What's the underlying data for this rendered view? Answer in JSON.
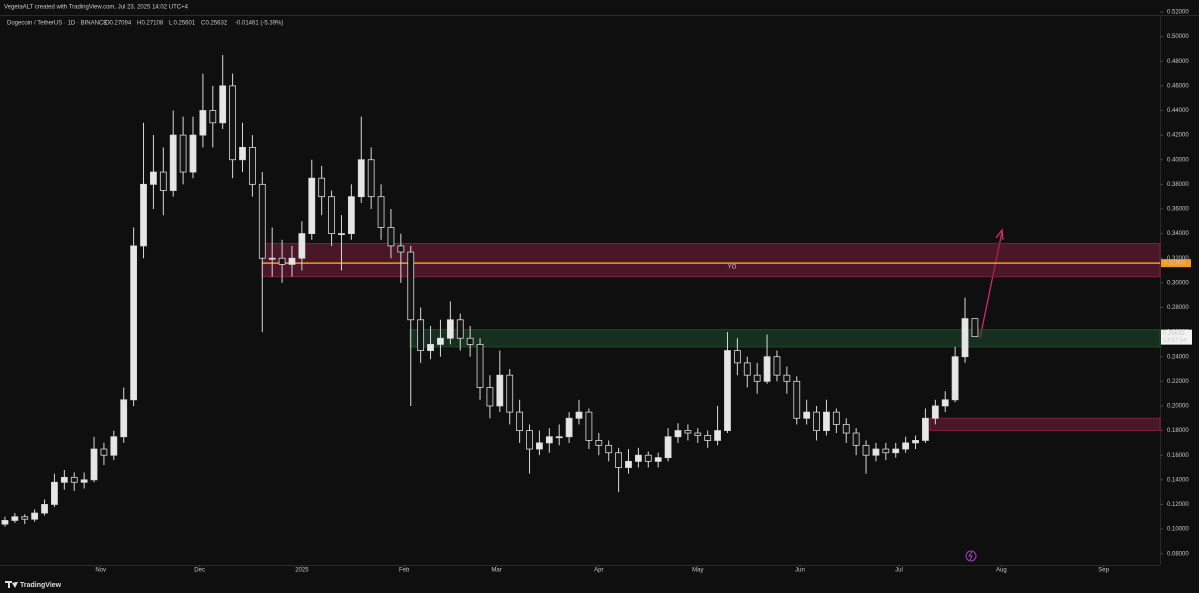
{
  "chart_data": {
    "type": "candlestick",
    "credit": "VegetaALT created with TradingView.com, Jul 23, 2025 14:02 UTC+4",
    "symbol": "Dogecoin / TetherUS · 1D · BINANCE",
    "ohlc_labels": [
      "O",
      "H",
      "L",
      "C"
    ],
    "change": "-0.01461 (-5.39%)",
    "countdown": "13:57:54",
    "brand": "TradingView",
    "up_color": "#e6e6e6",
    "down_color": "#141414",
    "wick_color": "#d8d8d8",
    "candles": [
      [
        0.104,
        0.11,
        0.102,
        0.107
      ],
      [
        0.107,
        0.113,
        0.105,
        0.11
      ],
      [
        0.11,
        0.112,
        0.104,
        0.108
      ],
      [
        0.108,
        0.116,
        0.106,
        0.113
      ],
      [
        0.113,
        0.124,
        0.111,
        0.12
      ],
      [
        0.12,
        0.145,
        0.118,
        0.138
      ],
      [
        0.138,
        0.148,
        0.132,
        0.142
      ],
      [
        0.142,
        0.146,
        0.131,
        0.138
      ],
      [
        0.138,
        0.146,
        0.133,
        0.14
      ],
      [
        0.14,
        0.175,
        0.138,
        0.165
      ],
      [
        0.165,
        0.17,
        0.152,
        0.16
      ],
      [
        0.16,
        0.18,
        0.156,
        0.175
      ],
      [
        0.175,
        0.215,
        0.17,
        0.205
      ],
      [
        0.205,
        0.345,
        0.2,
        0.33
      ],
      [
        0.33,
        0.43,
        0.32,
        0.38
      ],
      [
        0.38,
        0.42,
        0.36,
        0.39
      ],
      [
        0.39,
        0.41,
        0.355,
        0.375
      ],
      [
        0.375,
        0.44,
        0.37,
        0.42
      ],
      [
        0.42,
        0.435,
        0.38,
        0.39
      ],
      [
        0.39,
        0.435,
        0.385,
        0.42
      ],
      [
        0.42,
        0.47,
        0.41,
        0.44
      ],
      [
        0.44,
        0.46,
        0.41,
        0.43
      ],
      [
        0.43,
        0.485,
        0.425,
        0.46
      ],
      [
        0.46,
        0.47,
        0.385,
        0.4
      ],
      [
        0.4,
        0.43,
        0.39,
        0.41
      ],
      [
        0.41,
        0.42,
        0.37,
        0.38
      ],
      [
        0.38,
        0.39,
        0.26,
        0.32
      ],
      [
        0.32,
        0.345,
        0.305,
        0.32
      ],
      [
        0.32,
        0.335,
        0.3,
        0.315
      ],
      [
        0.315,
        0.33,
        0.305,
        0.32
      ],
      [
        0.32,
        0.35,
        0.31,
        0.34
      ],
      [
        0.34,
        0.4,
        0.335,
        0.385
      ],
      [
        0.385,
        0.395,
        0.355,
        0.37
      ],
      [
        0.37,
        0.375,
        0.33,
        0.34
      ],
      [
        0.34,
        0.355,
        0.31,
        0.34
      ],
      [
        0.34,
        0.38,
        0.335,
        0.37
      ],
      [
        0.37,
        0.435,
        0.365,
        0.4
      ],
      [
        0.4,
        0.41,
        0.36,
        0.37
      ],
      [
        0.37,
        0.38,
        0.335,
        0.345
      ],
      [
        0.345,
        0.36,
        0.32,
        0.33
      ],
      [
        0.33,
        0.34,
        0.3,
        0.325
      ],
      [
        0.325,
        0.33,
        0.2,
        0.27
      ],
      [
        0.27,
        0.28,
        0.235,
        0.245
      ],
      [
        0.245,
        0.265,
        0.238,
        0.25
      ],
      [
        0.25,
        0.27,
        0.24,
        0.255
      ],
      [
        0.255,
        0.285,
        0.25,
        0.27
      ],
      [
        0.27,
        0.275,
        0.245,
        0.255
      ],
      [
        0.255,
        0.265,
        0.24,
        0.25
      ],
      [
        0.25,
        0.255,
        0.205,
        0.215
      ],
      [
        0.215,
        0.225,
        0.19,
        0.2
      ],
      [
        0.2,
        0.245,
        0.195,
        0.225
      ],
      [
        0.225,
        0.23,
        0.185,
        0.195
      ],
      [
        0.195,
        0.205,
        0.17,
        0.18
      ],
      [
        0.18,
        0.185,
        0.145,
        0.165
      ],
      [
        0.165,
        0.18,
        0.16,
        0.17
      ],
      [
        0.17,
        0.182,
        0.162,
        0.175
      ],
      [
        0.175,
        0.185,
        0.168,
        0.175
      ],
      [
        0.175,
        0.195,
        0.17,
        0.19
      ],
      [
        0.19,
        0.205,
        0.185,
        0.195
      ],
      [
        0.195,
        0.198,
        0.165,
        0.172
      ],
      [
        0.172,
        0.178,
        0.16,
        0.168
      ],
      [
        0.168,
        0.172,
        0.155,
        0.162
      ],
      [
        0.162,
        0.166,
        0.13,
        0.15
      ],
      [
        0.15,
        0.165,
        0.145,
        0.155
      ],
      [
        0.155,
        0.166,
        0.15,
        0.16
      ],
      [
        0.16,
        0.163,
        0.15,
        0.155
      ],
      [
        0.155,
        0.162,
        0.15,
        0.158
      ],
      [
        0.158,
        0.182,
        0.155,
        0.175
      ],
      [
        0.175,
        0.186,
        0.17,
        0.18
      ],
      [
        0.18,
        0.185,
        0.172,
        0.178
      ],
      [
        0.178,
        0.182,
        0.17,
        0.176
      ],
      [
        0.176,
        0.18,
        0.166,
        0.172
      ],
      [
        0.172,
        0.2,
        0.168,
        0.18
      ],
      [
        0.18,
        0.26,
        0.178,
        0.245
      ],
      [
        0.245,
        0.255,
        0.225,
        0.235
      ],
      [
        0.235,
        0.24,
        0.215,
        0.225
      ],
      [
        0.225,
        0.235,
        0.21,
        0.22
      ],
      [
        0.22,
        0.258,
        0.218,
        0.24
      ],
      [
        0.24,
        0.245,
        0.22,
        0.225
      ],
      [
        0.225,
        0.232,
        0.21,
        0.22
      ],
      [
        0.22,
        0.224,
        0.185,
        0.19
      ],
      [
        0.19,
        0.205,
        0.185,
        0.195
      ],
      [
        0.195,
        0.2,
        0.172,
        0.18
      ],
      [
        0.18,
        0.205,
        0.176,
        0.195
      ],
      [
        0.195,
        0.198,
        0.178,
        0.185
      ],
      [
        0.185,
        0.19,
        0.17,
        0.178
      ],
      [
        0.178,
        0.182,
        0.16,
        0.168
      ],
      [
        0.168,
        0.172,
        0.145,
        0.16
      ],
      [
        0.16,
        0.17,
        0.155,
        0.165
      ],
      [
        0.165,
        0.17,
        0.156,
        0.162
      ],
      [
        0.162,
        0.17,
        0.158,
        0.165
      ],
      [
        0.165,
        0.175,
        0.162,
        0.17
      ],
      [
        0.17,
        0.176,
        0.165,
        0.172
      ],
      [
        0.172,
        0.198,
        0.17,
        0.19
      ],
      [
        0.19,
        0.205,
        0.185,
        0.2
      ],
      [
        0.2,
        0.212,
        0.195,
        0.205
      ],
      [
        0.205,
        0.248,
        0.203,
        0.24
      ],
      [
        0.24,
        0.288,
        0.235,
        0.27094
      ],
      [
        0.27094,
        0.27108,
        0.25601,
        0.25632
      ]
    ],
    "zones": [
      {
        "top": 0.332,
        "bottom": 0.305,
        "color": "#7a1f3d"
      },
      {
        "top": 0.262,
        "bottom": 0.248,
        "color": "#1f4a2c"
      },
      {
        "top": 0.19,
        "bottom": 0.18,
        "color": "#7a1f3d"
      }
    ],
    "level": {
      "value": 0.316,
      "label": "0.31600",
      "name": "YO",
      "color": "#f59a1f"
    },
    "xlim": [
      -0.5,
      116.7
    ],
    "xticks": [
      {
        "value": 9.67,
        "label": "Nov"
      },
      {
        "value": 19.67,
        "label": "Dec"
      },
      {
        "value": 30,
        "label": "2025"
      },
      {
        "value": 40.33,
        "label": "Feb"
      },
      {
        "value": 49.67,
        "label": "Mar"
      },
      {
        "value": 60,
        "label": "Apr"
      },
      {
        "value": 70,
        "label": "May"
      },
      {
        "value": 80.33,
        "label": "Jun"
      },
      {
        "value": 90.33,
        "label": "Jul"
      },
      {
        "value": 100.67,
        "label": "Aug"
      },
      {
        "value": 111,
        "label": "Sep"
      }
    ],
    "ylim": [
      0.07,
      0.52
    ],
    "yticks": [
      {
        "value": 0.08,
        "label": "0.08000"
      },
      {
        "value": 0.1,
        "label": "0.10000"
      },
      {
        "value": 0.12,
        "label": "0.12000"
      },
      {
        "value": 0.14,
        "label": "0.14000"
      },
      {
        "value": 0.16,
        "label": "0.16000"
      },
      {
        "value": 0.18,
        "label": "0.18000"
      },
      {
        "value": 0.2,
        "label": "0.20000"
      },
      {
        "value": 0.22,
        "label": "0.22000"
      },
      {
        "value": 0.24,
        "label": "0.24000"
      },
      {
        "value": 0.26,
        "label": "0.26000"
      },
      {
        "value": 0.28,
        "label": "0.28000"
      },
      {
        "value": 0.3,
        "label": "0.30000"
      },
      {
        "value": 0.32,
        "label": "0.32000"
      },
      {
        "value": 0.34,
        "label": "0.34000"
      },
      {
        "value": 0.36,
        "label": "0.36000"
      },
      {
        "value": 0.38,
        "label": "0.38000"
      },
      {
        "value": 0.4,
        "label": "0.40000"
      },
      {
        "value": 0.42,
        "label": "0.42000"
      },
      {
        "value": 0.44,
        "label": "0.44000"
      },
      {
        "value": 0.46,
        "label": "0.46000"
      },
      {
        "value": 0.48,
        "label": "0.48000"
      },
      {
        "value": 0.5,
        "label": "0.50000"
      },
      {
        "value": 0.52,
        "label": "0.52000"
      }
    ]
  }
}
